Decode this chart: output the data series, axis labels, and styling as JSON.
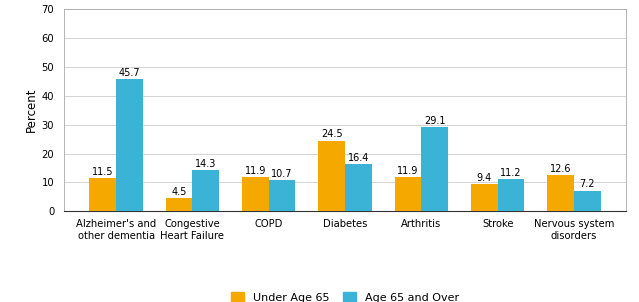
{
  "categories": [
    "Alzheimer's and\nother dementia",
    "Congestive\nHeart Failure",
    "COPD",
    "Diabetes",
    "Arthritis",
    "Stroke",
    "Nervous system\ndisorders"
  ],
  "under65": [
    11.5,
    4.5,
    11.9,
    24.5,
    11.9,
    9.4,
    12.6
  ],
  "over65": [
    45.7,
    14.3,
    10.7,
    16.4,
    29.1,
    11.2,
    7.2
  ],
  "under65_color": "#F5A800",
  "over65_color": "#3BB3D6",
  "ylabel": "Percent",
  "ylim": [
    0,
    70
  ],
  "yticks": [
    0,
    10,
    20,
    30,
    40,
    50,
    60,
    70
  ],
  "legend_under65": "Under Age 65",
  "legend_over65": "Age 65 and Over",
  "bar_width": 0.35,
  "background_color": "#ffffff",
  "grid_color": "#cccccc",
  "label_fontsize": 7.0,
  "tick_fontsize": 7.2,
  "ylabel_fontsize": 8.5,
  "legend_fontsize": 8.0
}
